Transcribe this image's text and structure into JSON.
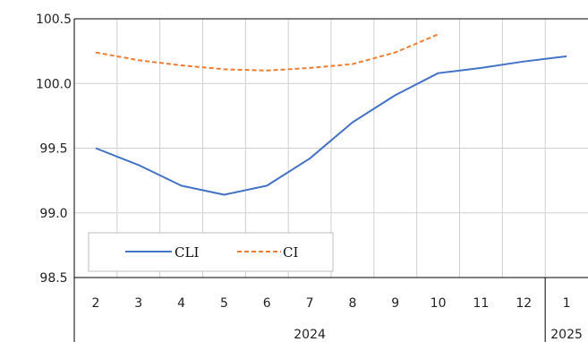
{
  "chart_data": {
    "type": "line",
    "x": [
      "2",
      "3",
      "4",
      "5",
      "6",
      "7",
      "8",
      "9",
      "10",
      "11",
      "12",
      "1"
    ],
    "year_groups": [
      {
        "label": "2024",
        "from": 0,
        "to": 10
      },
      {
        "label": "2025",
        "from": 11,
        "to": 11
      }
    ],
    "series": [
      {
        "name": "CLI",
        "color": "#4472C4",
        "dash": "solid",
        "values": [
          99.5,
          99.37,
          99.21,
          99.14,
          99.21,
          99.42,
          99.7,
          99.91,
          100.08,
          100.12,
          100.17,
          100.21
        ]
      },
      {
        "name": "CI",
        "color": "#ED7D31",
        "dash": "dashed",
        "values": [
          100.24,
          100.18,
          100.14,
          100.11,
          100.1,
          100.12,
          100.15,
          100.24,
          100.38,
          null,
          null,
          null
        ]
      }
    ],
    "ylim": [
      98.5,
      100.5
    ],
    "yticks": [
      "98.5",
      "99.0",
      "99.5",
      "100.0",
      "100.5"
    ],
    "grid": true,
    "legend": "bottom-left"
  }
}
